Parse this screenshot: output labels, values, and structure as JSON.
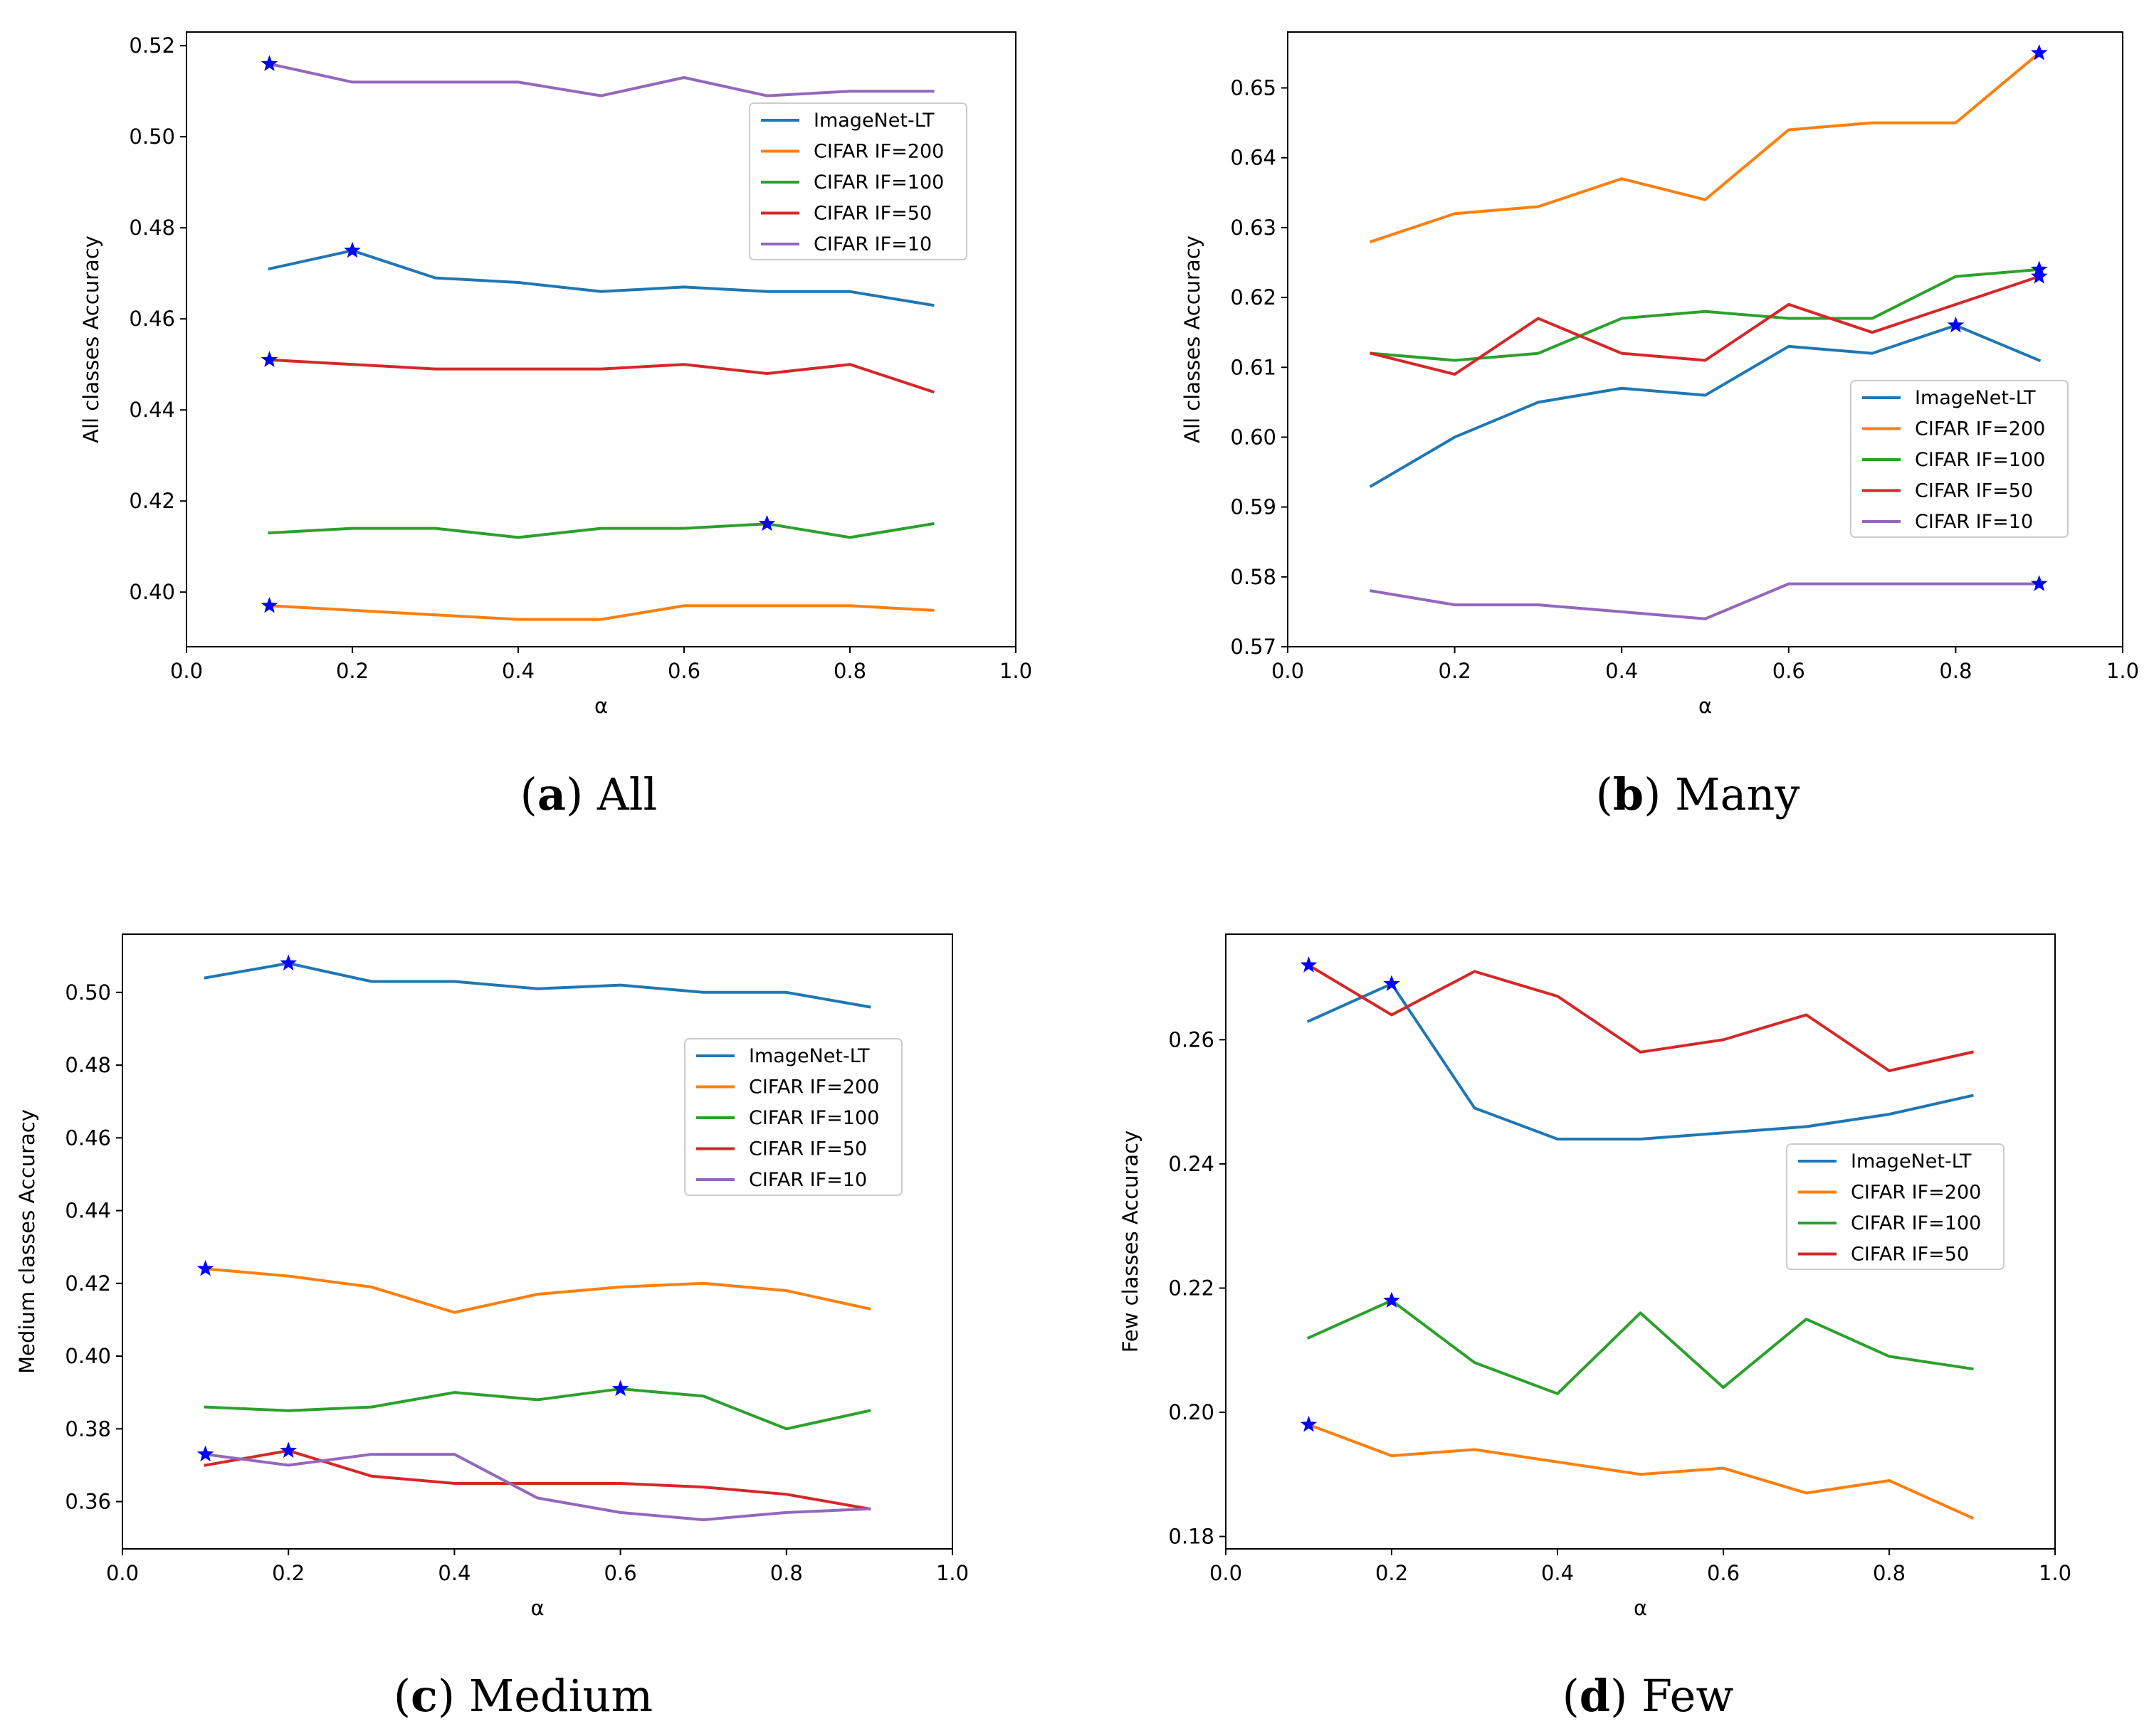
{
  "colors": {
    "ImageNet-LT": "#1f77b4",
    "CIFAR IF=200": "#ff7f0e",
    "CIFAR IF=100": "#2ca02c",
    "CIFAR IF=50": "#d62728",
    "CIFAR IF=10": "#9467bd",
    "star": "#0000ff"
  },
  "chart_data": [
    {
      "type": "line",
      "caption_letter": "a",
      "caption_text": "All",
      "caption_open": "(",
      "caption_close": ")",
      "xlabel": "α",
      "ylabel": "All classes Accuracy",
      "xlim": [
        0.0,
        1.0
      ],
      "ylim": [
        0.388,
        0.523
      ],
      "xticks": [
        0.0,
        0.2,
        0.4,
        0.6,
        0.8,
        1.0
      ],
      "xtick_labels": [
        "0.0",
        "0.2",
        "0.4",
        "0.6",
        "0.8",
        "1.0"
      ],
      "yticks": [
        0.4,
        0.42,
        0.44,
        0.46,
        0.48,
        0.5,
        0.52
      ],
      "ytick_labels": [
        "0.40",
        "0.42",
        "0.44",
        "0.46",
        "0.48",
        "0.50",
        "0.52"
      ],
      "legend_position": "upper-right",
      "x": [
        0.1,
        0.2,
        0.3,
        0.4,
        0.5,
        0.6,
        0.7,
        0.8,
        0.9
      ],
      "series": [
        {
          "name": "ImageNet-LT",
          "values": [
            0.471,
            0.475,
            0.469,
            0.468,
            0.466,
            0.467,
            0.466,
            0.466,
            0.463
          ],
          "best_x": 0.2
        },
        {
          "name": "CIFAR IF=200",
          "values": [
            0.397,
            0.396,
            0.395,
            0.394,
            0.394,
            0.397,
            0.397,
            0.397,
            0.396
          ],
          "best_x": 0.1
        },
        {
          "name": "CIFAR IF=100",
          "values": [
            0.413,
            0.414,
            0.414,
            0.412,
            0.414,
            0.414,
            0.415,
            0.412,
            0.415
          ],
          "best_x": 0.7
        },
        {
          "name": "CIFAR IF=50",
          "values": [
            0.451,
            0.45,
            0.449,
            0.449,
            0.449,
            0.45,
            0.448,
            0.45,
            0.444
          ],
          "best_x": 0.1
        },
        {
          "name": "CIFAR IF=10",
          "values": [
            0.516,
            0.512,
            0.512,
            0.512,
            0.509,
            0.513,
            0.509,
            0.51,
            0.51
          ],
          "best_x": 0.1
        }
      ]
    },
    {
      "type": "line",
      "caption_letter": "b",
      "caption_text": "Many",
      "caption_open": "(",
      "caption_close": ")",
      "xlabel": "α",
      "ylabel": "All classes Accuracy",
      "xlim": [
        0.0,
        1.0
      ],
      "ylim": [
        0.57,
        0.658
      ],
      "xticks": [
        0.0,
        0.2,
        0.4,
        0.6,
        0.8,
        1.0
      ],
      "xtick_labels": [
        "0.0",
        "0.2",
        "0.4",
        "0.6",
        "0.8",
        "1.0"
      ],
      "yticks": [
        0.57,
        0.58,
        0.59,
        0.6,
        0.61,
        0.62,
        0.63,
        0.64,
        0.65
      ],
      "ytick_labels": [
        "0.57",
        "0.58",
        "0.59",
        "0.60",
        "0.61",
        "0.62",
        "0.63",
        "0.64",
        "0.65"
      ],
      "legend_position": "lower-right",
      "x": [
        0.1,
        0.2,
        0.3,
        0.4,
        0.5,
        0.6,
        0.7,
        0.8,
        0.9
      ],
      "series": [
        {
          "name": "ImageNet-LT",
          "values": [
            0.593,
            0.6,
            0.605,
            0.607,
            0.606,
            0.613,
            0.612,
            0.616,
            0.611
          ],
          "best_x": 0.8
        },
        {
          "name": "CIFAR IF=200",
          "values": [
            0.628,
            0.632,
            0.633,
            0.637,
            0.634,
            0.644,
            0.645,
            0.645,
            0.655
          ],
          "best_x": 0.9
        },
        {
          "name": "CIFAR IF=100",
          "values": [
            0.612,
            0.611,
            0.612,
            0.617,
            0.618,
            0.617,
            0.617,
            0.623,
            0.624
          ],
          "best_x": 0.9
        },
        {
          "name": "CIFAR IF=50",
          "values": [
            0.612,
            0.609,
            0.617,
            0.612,
            0.611,
            0.619,
            0.615,
            0.619,
            0.623
          ],
          "best_x": 0.9
        },
        {
          "name": "CIFAR IF=10",
          "values": [
            0.578,
            0.576,
            0.576,
            0.575,
            0.574,
            0.579,
            0.579,
            0.579,
            0.579
          ],
          "best_x": 0.9
        }
      ]
    },
    {
      "type": "line",
      "caption_letter": "c",
      "caption_text": "Medium",
      "caption_open": "(",
      "caption_close": ")",
      "xlabel": "α",
      "ylabel": "Medium classes Accuracy",
      "xlim": [
        0.0,
        1.0
      ],
      "ylim": [
        0.347,
        0.516
      ],
      "xticks": [
        0.0,
        0.2,
        0.4,
        0.6,
        0.8,
        1.0
      ],
      "xtick_labels": [
        "0.0",
        "0.2",
        "0.4",
        "0.6",
        "0.8",
        "1.0"
      ],
      "yticks": [
        0.36,
        0.38,
        0.4,
        0.42,
        0.44,
        0.46,
        0.48,
        0.5
      ],
      "ytick_labels": [
        "0.36",
        "0.38",
        "0.40",
        "0.42",
        "0.44",
        "0.46",
        "0.48",
        "0.50"
      ],
      "legend_position": "center-right",
      "x": [
        0.1,
        0.2,
        0.3,
        0.4,
        0.5,
        0.6,
        0.7,
        0.8,
        0.9
      ],
      "series": [
        {
          "name": "ImageNet-LT",
          "values": [
            0.504,
            0.508,
            0.503,
            0.503,
            0.501,
            0.502,
            0.5,
            0.5,
            0.496
          ],
          "best_x": 0.2
        },
        {
          "name": "CIFAR IF=200",
          "values": [
            0.424,
            0.422,
            0.419,
            0.412,
            0.417,
            0.419,
            0.42,
            0.418,
            0.413
          ],
          "best_x": 0.1
        },
        {
          "name": "CIFAR IF=100",
          "values": [
            0.386,
            0.385,
            0.386,
            0.39,
            0.388,
            0.391,
            0.389,
            0.38,
            0.385
          ],
          "best_x": 0.6
        },
        {
          "name": "CIFAR IF=50",
          "values": [
            0.37,
            0.374,
            0.367,
            0.365,
            0.365,
            0.365,
            0.364,
            0.362,
            0.358
          ],
          "best_x": 0.2
        },
        {
          "name": "CIFAR IF=10",
          "values": [
            0.373,
            0.37,
            0.373,
            0.373,
            0.361,
            0.357,
            0.355,
            0.357,
            0.358
          ],
          "best_x": 0.1
        }
      ]
    },
    {
      "type": "line",
      "caption_letter": "d",
      "caption_text": "Few",
      "caption_open": "(",
      "caption_close": ")",
      "xlabel": "α",
      "ylabel": "Few classes Accuracy",
      "xlim": [
        0.0,
        1.0
      ],
      "ylim": [
        0.178,
        0.277
      ],
      "xticks": [
        0.0,
        0.2,
        0.4,
        0.6,
        0.8,
        1.0
      ],
      "xtick_labels": [
        "0.0",
        "0.2",
        "0.4",
        "0.6",
        "0.8",
        "1.0"
      ],
      "yticks": [
        0.18,
        0.2,
        0.22,
        0.24,
        0.26
      ],
      "ytick_labels": [
        "0.18",
        "0.20",
        "0.22",
        "0.24",
        "0.26"
      ],
      "legend_position": "center-right",
      "x": [
        0.1,
        0.2,
        0.3,
        0.4,
        0.5,
        0.6,
        0.7,
        0.8,
        0.9
      ],
      "series": [
        {
          "name": "ImageNet-LT",
          "values": [
            0.263,
            0.269,
            0.249,
            0.244,
            0.244,
            0.245,
            0.246,
            0.248,
            0.251
          ],
          "best_x": 0.2
        },
        {
          "name": "CIFAR IF=200",
          "values": [
            0.198,
            0.193,
            0.194,
            0.192,
            0.19,
            0.191,
            0.187,
            0.189,
            0.183
          ],
          "best_x": 0.1
        },
        {
          "name": "CIFAR IF=100",
          "values": [
            0.212,
            0.218,
            0.208,
            0.203,
            0.216,
            0.204,
            0.215,
            0.209,
            0.207
          ],
          "best_x": 0.2
        },
        {
          "name": "CIFAR IF=50",
          "values": [
            0.272,
            0.264,
            0.271,
            0.267,
            0.258,
            0.26,
            0.264,
            0.255,
            0.258
          ],
          "best_x": 0.1
        }
      ]
    }
  ]
}
